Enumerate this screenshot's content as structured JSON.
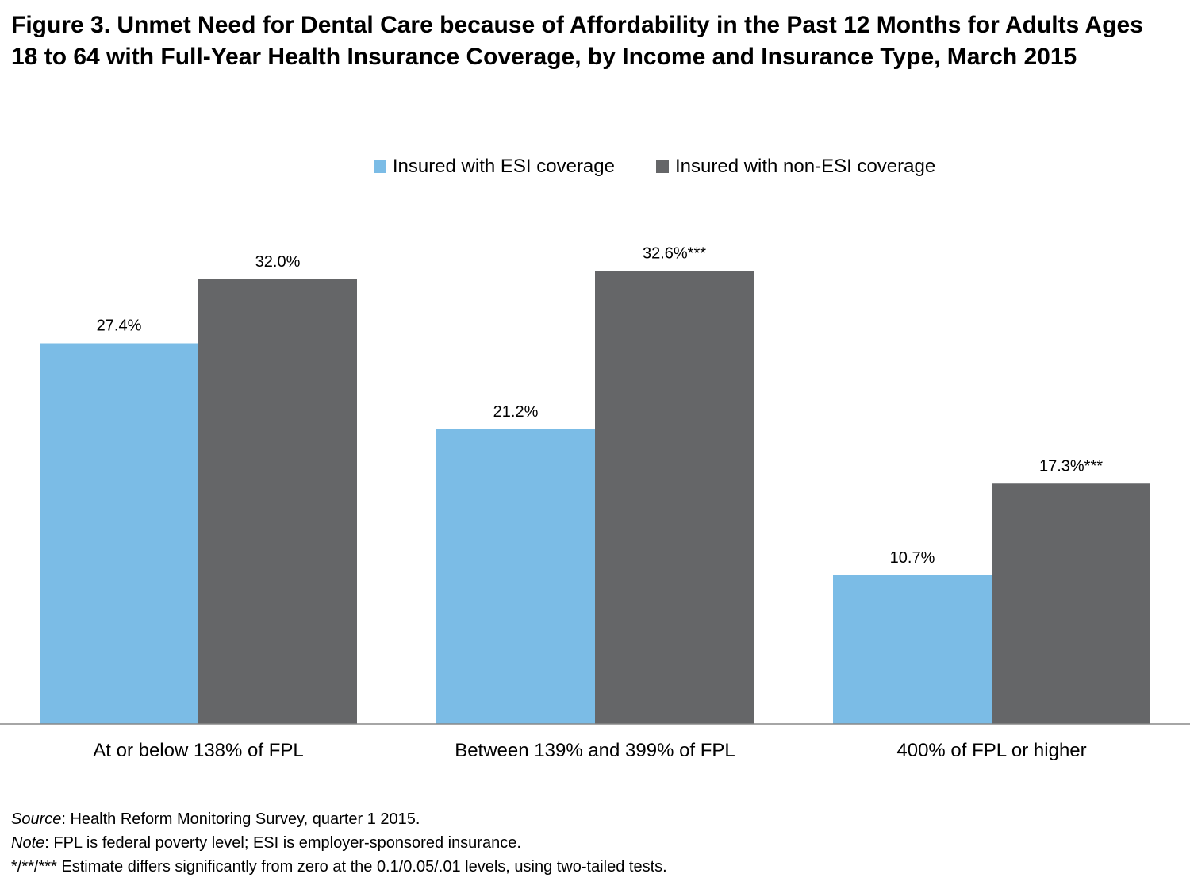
{
  "title": "Figure 3. Unmet Need for Dental Care because of Affordability in the Past 12 Months for Adults Ages 18 to 64 with Full-Year Health Insurance Coverage, by Income and Insurance Type, March 2015",
  "colors": {
    "esi": "#7bbce6",
    "non_esi": "#656668",
    "axis": "#888888"
  },
  "chart_data": {
    "type": "bar",
    "title": "Figure 3. Unmet Need for Dental Care because of Affordability in the Past 12 Months for Adults Ages 18 to 64 with Full-Year Health Insurance Coverage, by Income and Insurance Type, March 2015",
    "categories": [
      "At or below 138% of FPL",
      "Between 139% and 399% of FPL",
      "400% of FPL or higher"
    ],
    "series": [
      {
        "name": "Insured with ESI coverage",
        "values": [
          27.4,
          21.2,
          10.7
        ],
        "labels": [
          "27.4%",
          "21.2%",
          "10.7%"
        ]
      },
      {
        "name": "Insured with non-ESI coverage",
        "values": [
          32.0,
          32.6,
          17.3
        ],
        "labels": [
          "32.0%",
          "32.6%***",
          "17.3%***"
        ]
      }
    ],
    "xlabel": "",
    "ylabel": "",
    "ylim": [
      0,
      35
    ],
    "grid": false,
    "legend": "top-center"
  },
  "notes": {
    "source_label": "Source",
    "source_text": ": Health Reform Monitoring Survey,  quarter 1 2015.",
    "note_label": "Note",
    "note_text": ": FPL is federal poverty level; ESI is employer-sponsored insurance.",
    "significance": "*/**/***  Estimate differs significantly from zero at the 0.1/0.05/.01 levels, using two-tailed tests."
  }
}
